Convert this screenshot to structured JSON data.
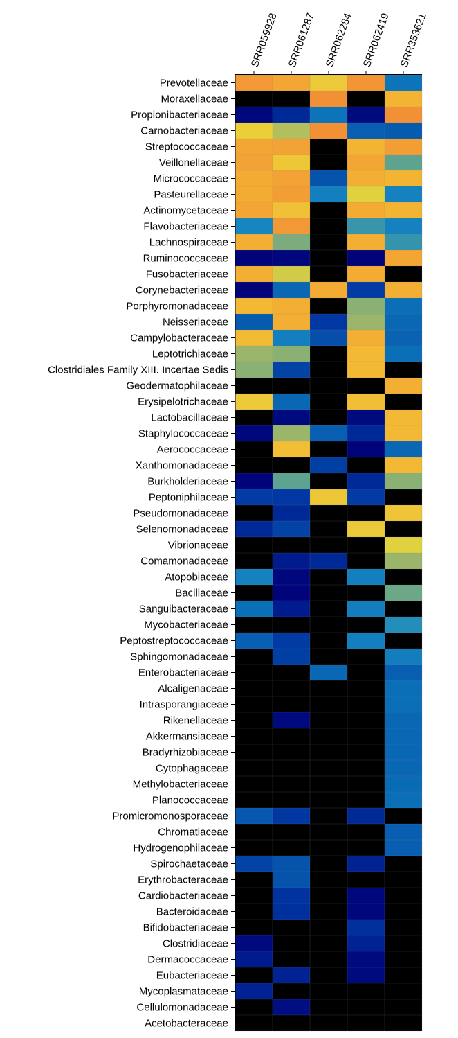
{
  "chart_data": {
    "type": "heatmap",
    "title": "",
    "xlabel": "",
    "ylabel": "",
    "legend": "none",
    "grid": true,
    "columns": [
      "SRR059928",
      "SRR061287",
      "SRR062284",
      "SRR062419",
      "SRR353621"
    ],
    "rows": [
      "Prevotellaceae",
      "Moraxellaceae",
      "Propionibacteriaceae",
      "Carnobacteriaceae",
      "Streptococcaceae",
      "Veillonellaceae",
      "Micrococcaceae",
      "Pasteurellaceae",
      "Actinomycetaceae",
      "Flavobacteriaceae",
      "Lachnospiraceae",
      "Ruminococcaceae",
      "Fusobacteriaceae",
      "Corynebacteriaceae",
      "Porphyromonadaceae",
      "Neisseriaceae",
      "Campylobacteraceae",
      "Leptotrichiaceae",
      "Clostridiales Family XIII. Incertae Sedis",
      "Geodermatophilaceae",
      "Erysipelotrichaceae",
      "Lactobacillaceae",
      "Staphylococcaceae",
      "Aerococcaceae",
      "Xanthomonadaceae",
      "Burkholderiaceae",
      "Peptoniphilaceae",
      "Pseudomonadaceae",
      "Selenomonadaceae",
      "Vibrionaceae",
      "Comamonadaceae",
      "Atopobiaceae",
      "Bacillaceae",
      "Sanguibacteraceae",
      "Mycobacteriaceae",
      "Peptostreptococcaceae",
      "Sphingomonadaceae",
      "Enterobacteriaceae",
      "Alcaligenaceae",
      "Intrasporangiaceae",
      "Rikenellaceae",
      "Akkermansiaceae",
      "Bradyrhizobiaceae",
      "Cytophagaceae",
      "Methylobacteriaceae",
      "Planococcaceae",
      "Promicromonosporaceae",
      "Chromatiaceae",
      "Hydrogenophilaceae",
      "Spirochaetaceae",
      "Erythrobacteraceae",
      "Cardiobacteriaceae",
      "Bacteroidaceae",
      "Bifidobacteriaceae",
      "Clostridiaceae",
      "Dermacoccaceae",
      "Eubacteriaceae",
      "Mycoplasmataceae",
      "Cellulomonadaceae",
      "Acetobacteraceae"
    ],
    "value_range": [
      0,
      1
    ],
    "colorscale": [
      [
        0.0,
        "#000000"
      ],
      [
        0.08,
        "#000000"
      ],
      [
        0.1,
        "#000077"
      ],
      [
        0.25,
        "#0033a0"
      ],
      [
        0.4,
        "#0b6fb7"
      ],
      [
        0.5,
        "#1a8ac2"
      ],
      [
        0.6,
        "#4d9e9a"
      ],
      [
        0.7,
        "#9bb56a"
      ],
      [
        0.8,
        "#e8d53a"
      ],
      [
        0.9,
        "#f3b834"
      ],
      [
        1.0,
        "#f28c35"
      ]
    ],
    "values": [
      [
        0.97,
        0.94,
        0.84,
        0.98,
        0.42
      ],
      [
        0.0,
        0.0,
        0.99,
        0.0,
        0.91
      ],
      [
        0.12,
        0.22,
        0.42,
        0.13,
        0.99
      ],
      [
        0.82,
        0.73,
        0.99,
        0.36,
        0.35
      ],
      [
        0.94,
        0.95,
        0.0,
        0.91,
        0.96
      ],
      [
        0.95,
        0.85,
        0.0,
        0.94,
        0.62
      ],
      [
        0.93,
        0.95,
        0.33,
        0.92,
        0.91
      ],
      [
        0.93,
        0.96,
        0.46,
        0.79,
        0.47
      ],
      [
        0.94,
        0.87,
        0.0,
        0.93,
        0.91
      ],
      [
        0.48,
        0.97,
        0.0,
        0.56,
        0.47
      ],
      [
        0.92,
        0.66,
        0.0,
        0.92,
        0.55
      ],
      [
        0.11,
        0.12,
        0.0,
        0.11,
        0.94
      ],
      [
        0.92,
        0.77,
        0.0,
        0.93,
        0.0
      ],
      [
        0.11,
        0.38,
        0.93,
        0.27,
        0.92
      ],
      [
        0.9,
        0.92,
        0.0,
        0.68,
        0.4
      ],
      [
        0.35,
        0.92,
        0.26,
        0.7,
        0.38
      ],
      [
        0.89,
        0.46,
        0.32,
        0.92,
        0.37
      ],
      [
        0.7,
        0.68,
        0.0,
        0.9,
        0.4
      ],
      [
        0.68,
        0.29,
        0.0,
        0.9,
        0.0
      ],
      [
        0.0,
        0.0,
        0.0,
        0.0,
        0.92
      ],
      [
        0.84,
        0.38,
        0.0,
        0.88,
        0.0
      ],
      [
        0.0,
        0.13,
        0.0,
        0.13,
        0.9
      ],
      [
        0.12,
        0.7,
        0.36,
        0.22,
        0.9
      ],
      [
        0.0,
        0.88,
        0.0,
        0.11,
        0.38
      ],
      [
        0.0,
        0.0,
        0.28,
        0.0,
        0.9
      ],
      [
        0.11,
        0.62,
        0.0,
        0.22,
        0.68
      ],
      [
        0.27,
        0.26,
        0.85,
        0.27,
        0.0
      ],
      [
        0.0,
        0.22,
        0.0,
        0.0,
        0.86
      ],
      [
        0.22,
        0.29,
        0.0,
        0.84,
        0.0
      ],
      [
        0.0,
        0.0,
        0.0,
        0.0,
        0.79
      ],
      [
        0.0,
        0.18,
        0.22,
        0.0,
        0.7
      ],
      [
        0.47,
        0.12,
        0.0,
        0.46,
        0.0
      ],
      [
        0.0,
        0.11,
        0.0,
        0.0,
        0.64
      ],
      [
        0.4,
        0.18,
        0.0,
        0.45,
        0.0
      ],
      [
        0.0,
        0.0,
        0.0,
        0.0,
        0.52
      ],
      [
        0.36,
        0.27,
        0.0,
        0.46,
        0.0
      ],
      [
        0.0,
        0.28,
        0.0,
        0.0,
        0.45
      ],
      [
        0.0,
        0.0,
        0.38,
        0.0,
        0.36
      ],
      [
        0.0,
        0.0,
        0.0,
        0.0,
        0.4
      ],
      [
        0.0,
        0.0,
        0.0,
        0.0,
        0.4
      ],
      [
        0.0,
        0.13,
        0.0,
        0.0,
        0.38
      ],
      [
        0.0,
        0.0,
        0.0,
        0.0,
        0.38
      ],
      [
        0.0,
        0.0,
        0.0,
        0.0,
        0.38
      ],
      [
        0.0,
        0.0,
        0.0,
        0.0,
        0.38
      ],
      [
        0.0,
        0.0,
        0.0,
        0.0,
        0.39
      ],
      [
        0.0,
        0.0,
        0.0,
        0.0,
        0.4
      ],
      [
        0.34,
        0.26,
        0.0,
        0.22,
        0.0
      ],
      [
        0.0,
        0.0,
        0.0,
        0.0,
        0.36
      ],
      [
        0.0,
        0.0,
        0.0,
        0.0,
        0.36
      ],
      [
        0.29,
        0.33,
        0.0,
        0.2,
        0.0
      ],
      [
        0.0,
        0.33,
        0.0,
        0.0,
        0.0
      ],
      [
        0.0,
        0.25,
        0.0,
        0.12,
        0.0
      ],
      [
        0.0,
        0.24,
        0.0,
        0.12,
        0.0
      ],
      [
        0.0,
        0.0,
        0.0,
        0.24,
        0.0
      ],
      [
        0.13,
        0.0,
        0.0,
        0.2,
        0.0
      ],
      [
        0.18,
        0.0,
        0.0,
        0.13,
        0.0
      ],
      [
        0.0,
        0.2,
        0.0,
        0.13,
        0.0
      ],
      [
        0.2,
        0.0,
        0.0,
        0.0,
        0.0
      ],
      [
        0.0,
        0.14,
        0.0,
        0.0,
        0.0
      ],
      [
        0.0,
        0.0,
        0.0,
        0.0,
        0.0
      ]
    ]
  }
}
